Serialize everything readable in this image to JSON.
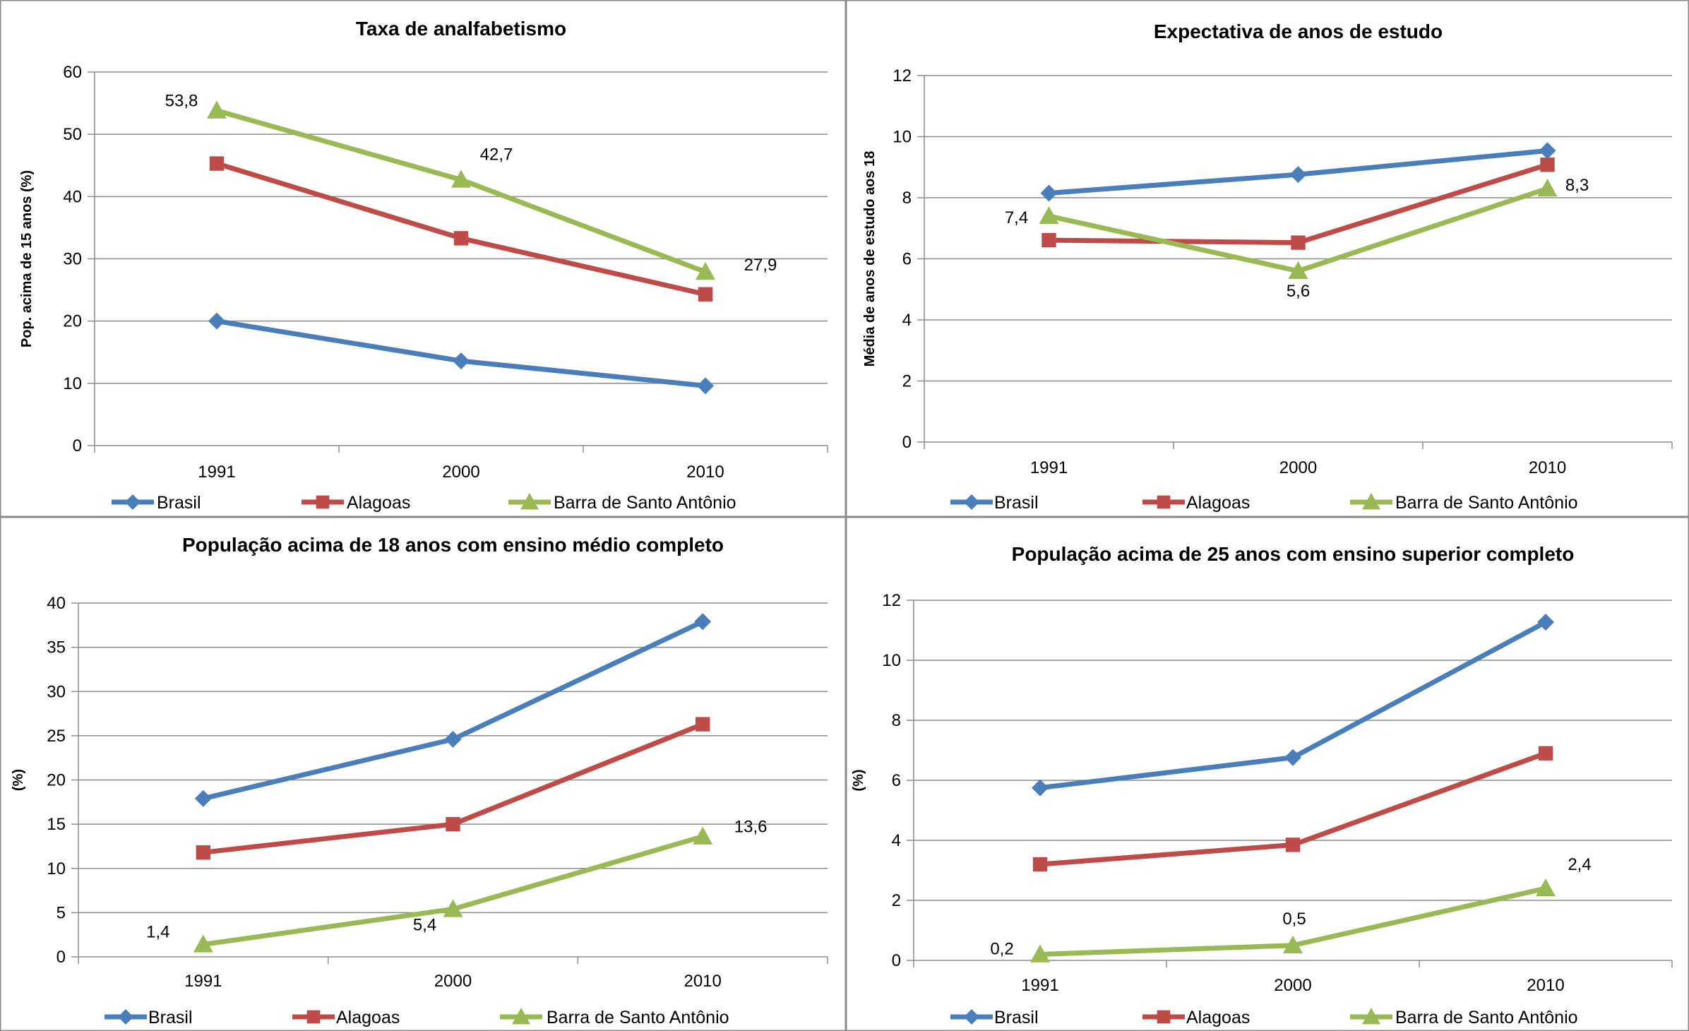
{
  "chart_data": [
    {
      "type": "line",
      "title": "Taxa de analfabetismo",
      "ylabel": "Pop. acima de 15 anos (%)",
      "xlabel": "",
      "categories": [
        "1991",
        "2000",
        "2010"
      ],
      "ylim": [
        0,
        60
      ],
      "yticks": [
        0,
        10,
        20,
        30,
        40,
        50,
        60
      ],
      "grid": true,
      "legend": "bottom",
      "series": [
        {
          "name": "Brasil",
          "values": [
            20.0,
            13.6,
            9.6
          ],
          "color": "#4a7ebb",
          "marker": "diamond"
        },
        {
          "name": "Alagoas",
          "values": [
            45.3,
            33.3,
            24.3
          ],
          "color": "#be4b48",
          "marker": "square"
        },
        {
          "name": "Barra de Santo Antônio",
          "values": [
            53.8,
            42.7,
            27.9
          ],
          "color": "#98b954",
          "marker": "triangle",
          "labels": [
            "53,8",
            "42,7",
            "27,9"
          ]
        }
      ]
    },
    {
      "type": "line",
      "title": "Expectativa de anos de estudo",
      "ylabel": "Média de anos de estudo aos 18",
      "xlabel": "",
      "categories": [
        "1991",
        "2000",
        "2010"
      ],
      "ylim": [
        0,
        12
      ],
      "yticks": [
        0,
        2,
        4,
        6,
        8,
        10,
        12
      ],
      "grid": true,
      "legend": "bottom",
      "series": [
        {
          "name": "Brasil",
          "values": [
            8.15,
            8.76,
            9.54
          ],
          "color": "#4a7ebb",
          "marker": "diamond"
        },
        {
          "name": "Alagoas",
          "values": [
            6.61,
            6.53,
            9.08
          ],
          "color": "#be4b48",
          "marker": "square"
        },
        {
          "name": "Barra de Santo Antônio",
          "values": [
            7.4,
            5.6,
            8.3
          ],
          "color": "#98b954",
          "marker": "triangle",
          "labels": [
            "7,4",
            "5,6",
            "8,3"
          ]
        }
      ]
    },
    {
      "type": "line",
      "title": "População acima de 18 anos com ensino médio completo",
      "ylabel": "(%)",
      "xlabel": "",
      "categories": [
        "1991",
        "2000",
        "2010"
      ],
      "ylim": [
        0,
        40
      ],
      "yticks": [
        0,
        5,
        10,
        15,
        20,
        25,
        30,
        35,
        40
      ],
      "grid": true,
      "legend": "bottom",
      "series": [
        {
          "name": "Brasil",
          "values": [
            17.9,
            24.6,
            37.9
          ],
          "color": "#4a7ebb",
          "marker": "diamond"
        },
        {
          "name": "Alagoas",
          "values": [
            11.8,
            15.0,
            26.3
          ],
          "color": "#be4b48",
          "marker": "square"
        },
        {
          "name": "Barra de Santo Antônio",
          "values": [
            1.4,
            5.4,
            13.6
          ],
          "color": "#98b954",
          "marker": "triangle",
          "labels": [
            "1,4",
            "5,4",
            "13,6"
          ]
        }
      ]
    },
    {
      "type": "line",
      "title": "População acima de 25 anos com ensino superior completo",
      "ylabel": "(%)",
      "xlabel": "",
      "categories": [
        "1991",
        "2000",
        "2010"
      ],
      "ylim": [
        0,
        12
      ],
      "yticks": [
        0,
        2,
        4,
        6,
        8,
        10,
        12
      ],
      "grid": true,
      "legend": "bottom",
      "series": [
        {
          "name": "Brasil",
          "values": [
            5.75,
            6.76,
            11.27
          ],
          "color": "#4a7ebb",
          "marker": "diamond"
        },
        {
          "name": "Alagoas",
          "values": [
            3.2,
            3.85,
            6.9
          ],
          "color": "#be4b48",
          "marker": "square"
        },
        {
          "name": "Barra de Santo Antônio",
          "values": [
            0.2,
            0.5,
            2.4
          ],
          "color": "#98b954",
          "marker": "triangle",
          "labels": [
            "0,2",
            "0,5",
            "2,4"
          ]
        }
      ]
    }
  ]
}
